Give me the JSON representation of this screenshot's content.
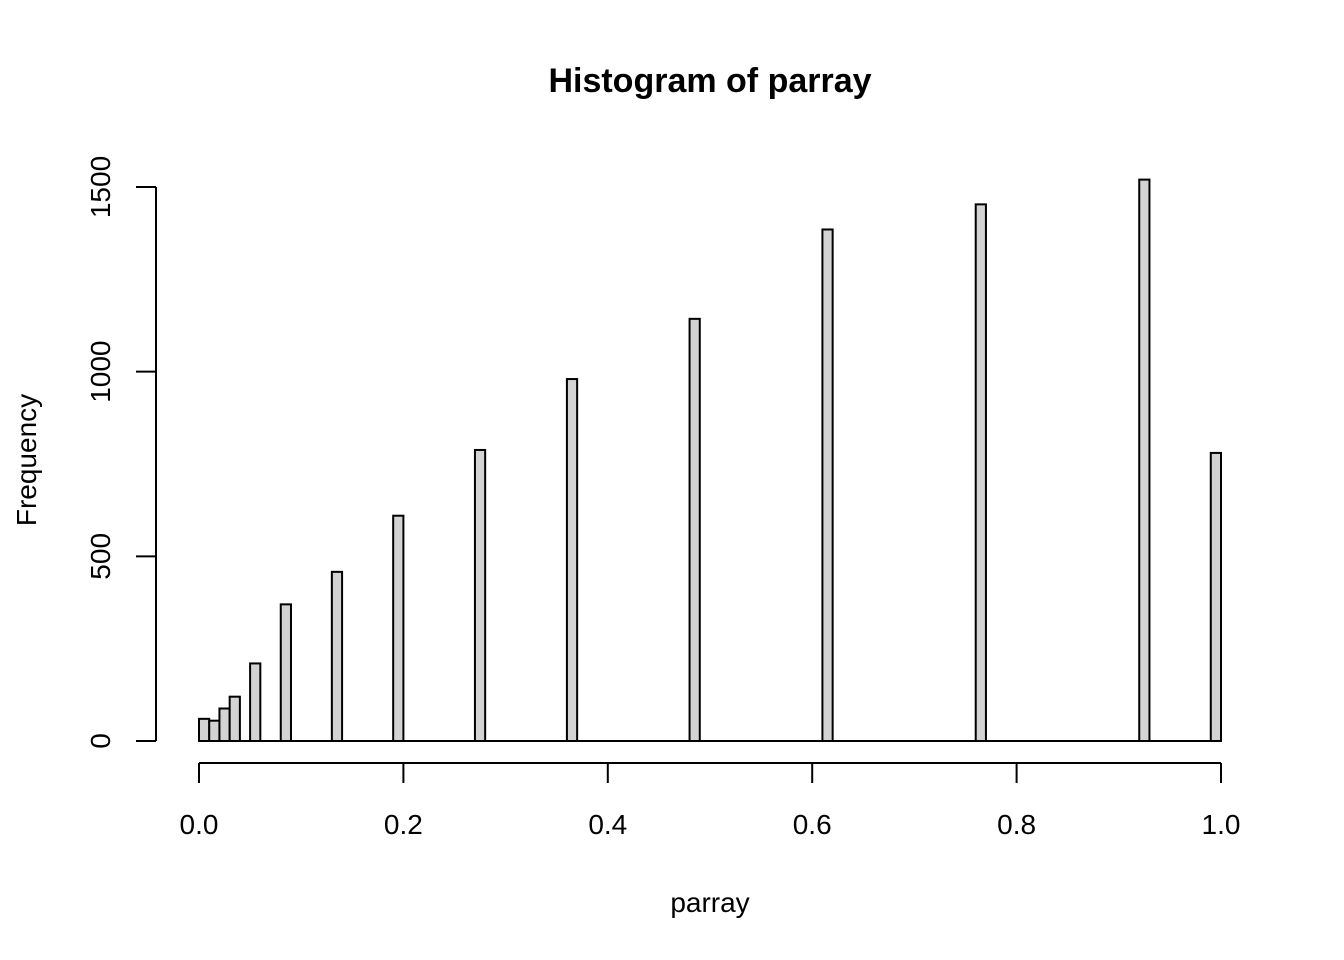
{
  "chart_data": {
    "type": "bar",
    "title": "Histogram of parray",
    "xlabel": "parray",
    "ylabel": "Frequency",
    "xlim": [
      0,
      1
    ],
    "ylim": [
      0,
      1500
    ],
    "x_ticks": [
      "0.0",
      "0.2",
      "0.4",
      "0.6",
      "0.8",
      "1.0"
    ],
    "y_ticks": [
      "0",
      "500",
      "1000",
      "1500"
    ],
    "bin_width": 0.01,
    "bar_fill": "#d3d3d3",
    "bar_stroke": "#000000",
    "bins": [
      {
        "x0": 0.0,
        "x1": 0.01,
        "count": 60
      },
      {
        "x0": 0.01,
        "x1": 0.02,
        "count": 55
      },
      {
        "x0": 0.02,
        "x1": 0.03,
        "count": 88
      },
      {
        "x0": 0.03,
        "x1": 0.04,
        "count": 120
      },
      {
        "x0": 0.05,
        "x1": 0.06,
        "count": 210
      },
      {
        "x0": 0.08,
        "x1": 0.09,
        "count": 370
      },
      {
        "x0": 0.13,
        "x1": 0.14,
        "count": 458
      },
      {
        "x0": 0.19,
        "x1": 0.2,
        "count": 610
      },
      {
        "x0": 0.27,
        "x1": 0.28,
        "count": 788
      },
      {
        "x0": 0.36,
        "x1": 0.37,
        "count": 980
      },
      {
        "x0": 0.48,
        "x1": 0.49,
        "count": 1143
      },
      {
        "x0": 0.61,
        "x1": 0.62,
        "count": 1385
      },
      {
        "x0": 0.76,
        "x1": 0.77,
        "count": 1453
      },
      {
        "x0": 0.92,
        "x1": 0.93,
        "count": 1520
      },
      {
        "x0": 0.99,
        "x1": 1.0,
        "count": 780
      }
    ]
  }
}
